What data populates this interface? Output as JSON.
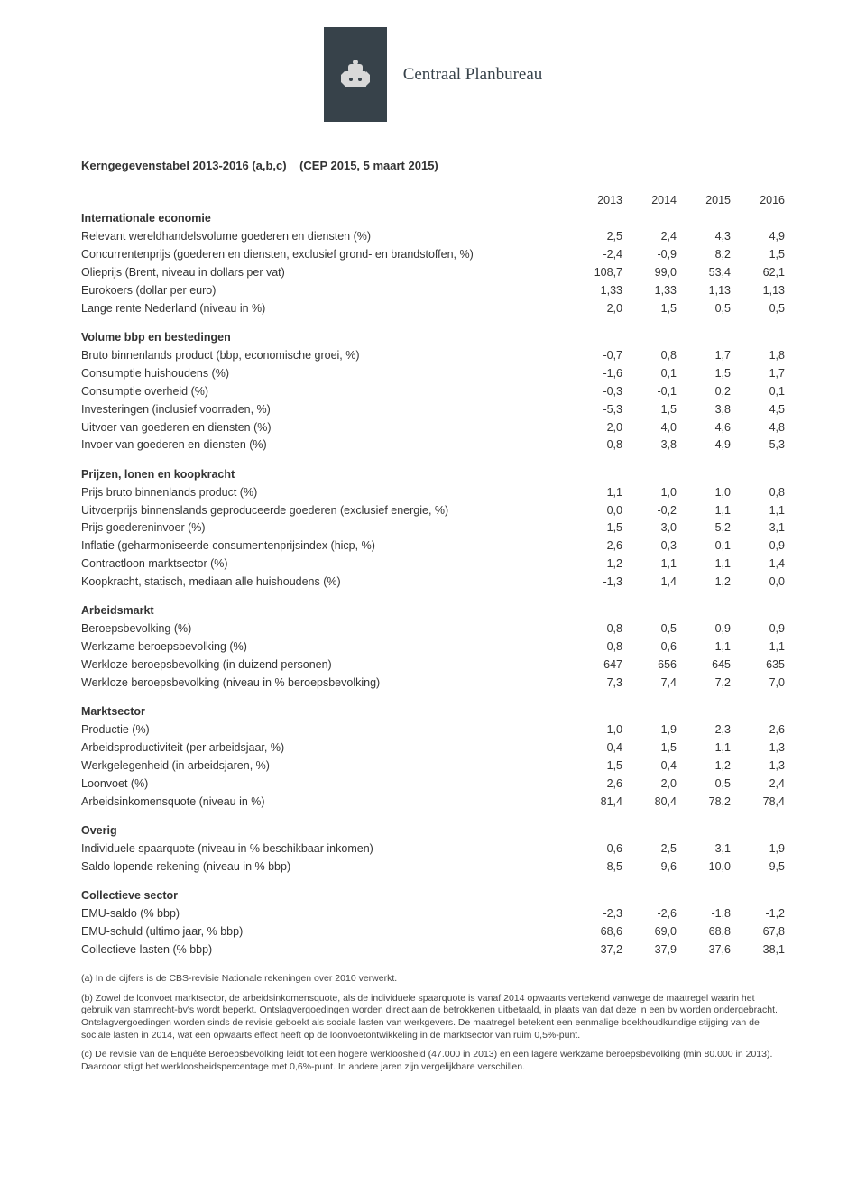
{
  "header": {
    "org_name": "Centraal Planbureau",
    "title_bold": "Kerngegevenstabel 2013-2016 (a,b,c)",
    "title_paren": "(CEP 2015, 5 maart 2015)"
  },
  "years": [
    "2013",
    "2014",
    "2015",
    "2016"
  ],
  "sections": [
    {
      "heading": "Internationale economie",
      "rows": [
        {
          "label": "Relevant wereldhandelsvolume goederen en diensten (%)",
          "vals": [
            "2,5",
            "2,4",
            "4,3",
            "4,9"
          ]
        },
        {
          "label": "Concurrentenprijs (goederen en diensten, exclusief grond- en brandstoffen, %)",
          "vals": [
            "-2,4",
            "-0,9",
            "8,2",
            "1,5"
          ]
        },
        {
          "label": "Olieprijs (Brent, niveau in dollars per vat)",
          "vals": [
            "108,7",
            "99,0",
            "53,4",
            "62,1"
          ]
        },
        {
          "label": "Eurokoers (dollar per euro)",
          "vals": [
            "1,33",
            "1,33",
            "1,13",
            "1,13"
          ]
        },
        {
          "label": "Lange rente Nederland (niveau in %)",
          "vals": [
            "2,0",
            "1,5",
            "0,5",
            "0,5"
          ]
        }
      ]
    },
    {
      "heading": "Volume bbp en bestedingen",
      "rows": [
        {
          "label": "Bruto binnenlands product (bbp, economische groei, %)",
          "vals": [
            "-0,7",
            "0,8",
            "1,7",
            "1,8"
          ]
        },
        {
          "label": "Consumptie huishoudens (%)",
          "vals": [
            "-1,6",
            "0,1",
            "1,5",
            "1,7"
          ]
        },
        {
          "label": "Consumptie overheid (%)",
          "vals": [
            "-0,3",
            "-0,1",
            "0,2",
            "0,1"
          ]
        },
        {
          "label": "Investeringen (inclusief voorraden, %)",
          "vals": [
            "-5,3",
            "1,5",
            "3,8",
            "4,5"
          ]
        },
        {
          "label": "Uitvoer van goederen en diensten (%)",
          "vals": [
            "2,0",
            "4,0",
            "4,6",
            "4,8"
          ]
        },
        {
          "label": "Invoer van goederen en diensten (%)",
          "vals": [
            "0,8",
            "3,8",
            "4,9",
            "5,3"
          ]
        }
      ]
    },
    {
      "heading": "Prijzen, lonen en koopkracht",
      "rows": [
        {
          "label": "Prijs bruto binnenlands product (%)",
          "vals": [
            "1,1",
            "1,0",
            "1,0",
            "0,8"
          ]
        },
        {
          "label": "Uitvoerprijs binnenslands geproduceerde goederen (exclusief energie, %)",
          "vals": [
            "0,0",
            "-0,2",
            "1,1",
            "1,1"
          ]
        },
        {
          "label": "Prijs goedereninvoer (%)",
          "vals": [
            "-1,5",
            "-3,0",
            "-5,2",
            "3,1"
          ]
        },
        {
          "label": "Inflatie (geharmoniseerde consumentenprijsindex (hicp, %)",
          "vals": [
            "2,6",
            "0,3",
            "-0,1",
            "0,9"
          ]
        },
        {
          "label": "Contractloon marktsector (%)",
          "vals": [
            "1,2",
            "1,1",
            "1,1",
            "1,4"
          ]
        },
        {
          "label": "Koopkracht, statisch, mediaan alle huishoudens (%)",
          "vals": [
            "-1,3",
            "1,4",
            "1,2",
            "0,0"
          ]
        }
      ]
    },
    {
      "heading": "Arbeidsmarkt",
      "rows": [
        {
          "label": "Beroepsbevolking (%)",
          "vals": [
            "0,8",
            "-0,5",
            "0,9",
            "0,9"
          ]
        },
        {
          "label": "Werkzame beroepsbevolking (%)",
          "vals": [
            "-0,8",
            "-0,6",
            "1,1",
            "1,1"
          ]
        },
        {
          "label": "Werkloze beroepsbevolking (in duizend personen)",
          "vals": [
            "647",
            "656",
            "645",
            "635"
          ]
        },
        {
          "label": "Werkloze beroepsbevolking (niveau in % beroepsbevolking)",
          "vals": [
            "7,3",
            "7,4",
            "7,2",
            "7,0"
          ]
        }
      ]
    },
    {
      "heading": "Marktsector",
      "rows": [
        {
          "label": "Productie (%)",
          "vals": [
            "-1,0",
            "1,9",
            "2,3",
            "2,6"
          ]
        },
        {
          "label": "Arbeidsproductiviteit (per arbeidsjaar, %)",
          "vals": [
            "0,4",
            "1,5",
            "1,1",
            "1,3"
          ]
        },
        {
          "label": "Werkgelegenheid (in arbeidsjaren, %)",
          "vals": [
            "-1,5",
            "0,4",
            "1,2",
            "1,3"
          ]
        },
        {
          "label": "Loonvoet (%)",
          "vals": [
            "2,6",
            "2,0",
            "0,5",
            "2,4"
          ]
        },
        {
          "label": "Arbeidsinkomensquote (niveau in %)",
          "vals": [
            "81,4",
            "80,4",
            "78,2",
            "78,4"
          ]
        }
      ]
    },
    {
      "heading": "Overig",
      "rows": [
        {
          "label": "Individuele spaarquote (niveau in % beschikbaar inkomen)",
          "vals": [
            "0,6",
            "2,5",
            "3,1",
            "1,9"
          ]
        },
        {
          "label": "Saldo lopende rekening (niveau in % bbp)",
          "vals": [
            "8,5",
            "9,6",
            "10,0",
            "9,5"
          ]
        }
      ]
    },
    {
      "heading": "Collectieve sector",
      "rows": [
        {
          "label": "EMU-saldo (% bbp)",
          "vals": [
            "-2,3",
            "-2,6",
            "-1,8",
            "-1,2"
          ]
        },
        {
          "label": "EMU-schuld (ultimo jaar, % bbp)",
          "vals": [
            "68,6",
            "69,0",
            "68,8",
            "67,8"
          ]
        },
        {
          "label": "Collectieve lasten (% bbp)",
          "vals": [
            "37,2",
            "37,9",
            "37,6",
            "38,1"
          ]
        }
      ]
    }
  ],
  "footnotes": [
    "(a) In de cijfers is de CBS-revisie Nationale rekeningen over 2010 verwerkt.",
    "(b) Zowel de loonvoet marktsector, de arbeidsinkomensquote, als de individuele spaarquote is vanaf 2014 opwaarts vertekend vanwege de maatregel waarin het gebruik van stamrecht-bv's wordt beperkt. Ontslagvergoedingen worden direct aan de betrokkenen uitbetaald, in plaats van dat deze in een bv worden ondergebracht. Ontslagvergoedingen worden sinds de revisie geboekt als sociale lasten van werkgevers. De maatregel betekent een eenmalige boekhoudkundige stijging van de sociale lasten in 2014, wat een opwaarts effect heeft op de loonvoetontwikkeling in de marktsector van ruim 0,5%-punt.",
    "(c) De revisie van de Enquête Beroepsbevolking leidt tot een hogere werkloosheid (47.000 in 2013) en een lagere werkzame beroepsbevolking (min 80.000 in 2013). Daardoor stijgt het werkloosheidspercentage met 0,6%-punt. In andere jaren zijn vergelijkbare verschillen."
  ]
}
